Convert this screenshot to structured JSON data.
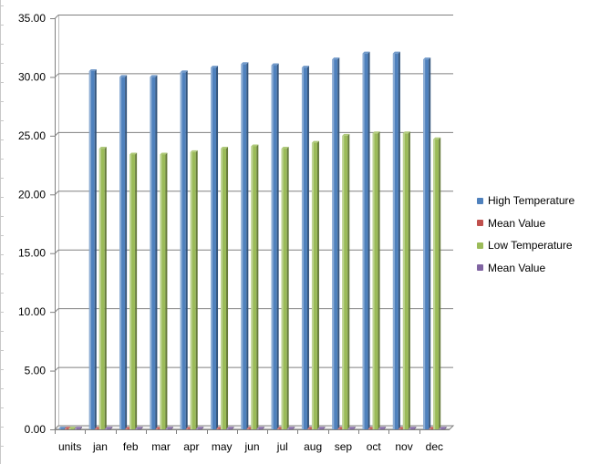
{
  "chart_data": {
    "type": "bar",
    "categories": [
      "units",
      "jan",
      "feb",
      "mar",
      "apr",
      "may",
      "jun",
      "jul",
      "aug",
      "sep",
      "oct",
      "nov",
      "dec"
    ],
    "series": [
      {
        "name": "High Temperature",
        "color": "#4f81bd",
        "values": [
          0,
          30.5,
          30.0,
          30.0,
          30.4,
          30.8,
          31.1,
          31.0,
          30.8,
          31.5,
          32.0,
          32.0,
          31.5
        ]
      },
      {
        "name": "Mean Value",
        "color": "#c0504d",
        "values": [
          0,
          0,
          0,
          0,
          0,
          0,
          0,
          0,
          0,
          0,
          0,
          0,
          0
        ]
      },
      {
        "name": "Low Temperature",
        "color": "#9bbb59",
        "values": [
          0,
          23.9,
          23.4,
          23.4,
          23.6,
          23.9,
          24.1,
          23.9,
          24.4,
          25.0,
          25.2,
          25.2,
          24.7
        ]
      },
      {
        "name": "Mean Value",
        "color": "#8064a2",
        "values": [
          0,
          0,
          0,
          0,
          0,
          0,
          0,
          0,
          0,
          0,
          0,
          0,
          0
        ]
      }
    ],
    "yticks": [
      "0.00",
      "5.00",
      "10.00",
      "15.00",
      "20.00",
      "25.00",
      "30.00",
      "35.00"
    ],
    "ylim": [
      0,
      35
    ],
    "grid": true,
    "legend_position": "right"
  }
}
